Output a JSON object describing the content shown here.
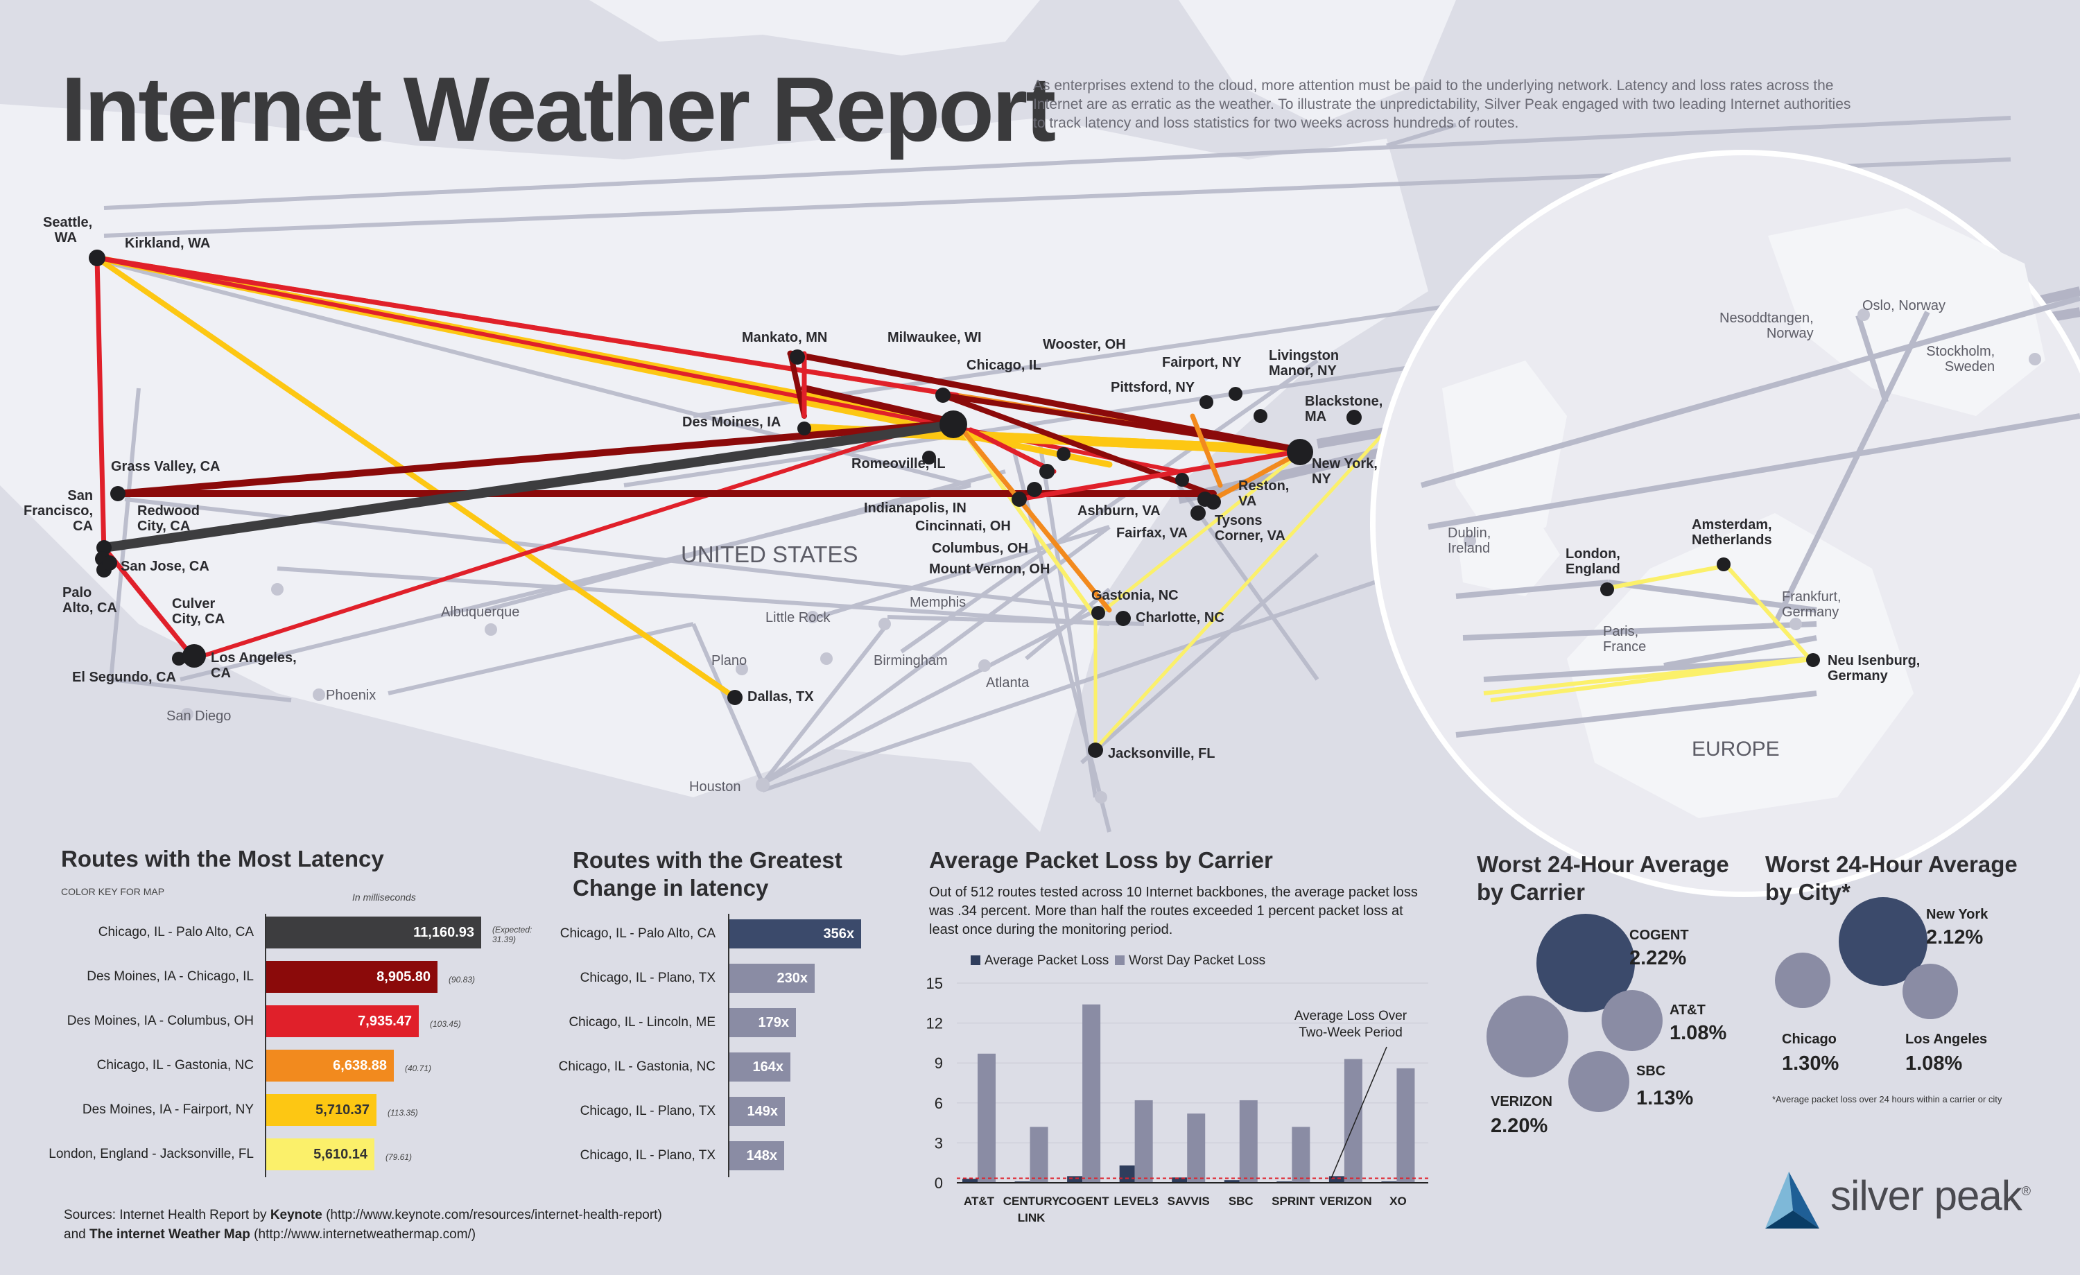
{
  "header": {
    "title": "Internet Weather Report",
    "intro": "As enterprises extend to the cloud, more attention must be paid to the underlying network. Latency and loss rates across the Internet are as erratic as the weather. To illustrate the unpredictability, Silver Peak engaged with two leading Internet authorities to track latency and loss statistics for two weeks across hundreds of routes."
  },
  "map": {
    "region_us": "UNITED STATES",
    "region_eu": "EUROPE",
    "cities_bold": [
      "Seattle, WA",
      "Kirkland, WA",
      "Mankato, MN",
      "Milwaukee, WI",
      "Wooster, OH",
      "Chicago, IL",
      "Fairport, NY",
      "Livingston Manor, NY",
      "Pittsford, NY",
      "Blackstone, MA",
      "Des Moines, IA",
      "New York, NY",
      "Romeoville, IL",
      "Reston, VA",
      "Grass Valley, CA",
      "San Francisco, CA",
      "Redwood City, CA",
      "Indianapolis, IN",
      "Ashburn, VA",
      "Tysons Corner, VA",
      "Cincinnati, OH",
      "Fairfax, VA",
      "Columbus, OH",
      "Mount Vernon, OH",
      "San Jose, CA",
      "Palo Alto, CA",
      "Culver City, CA",
      "Gastonia, NC",
      "Charlotte, NC",
      "Los Angeles, CA",
      "El Segundo, CA",
      "Dallas, TX",
      "Jacksonville, FL",
      "London, England",
      "Amsterdam, Netherlands",
      "Neu Isenburg, Germany"
    ],
    "cities_light": [
      "Albuquerque",
      "Little Rock",
      "Memphis",
      "Plano",
      "Birmingham",
      "Atlanta",
      "Phoenix",
      "San Diego",
      "Houston",
      "Dublin, Ireland",
      "Paris, France",
      "Frankfurt, Germany",
      "Nesoddtangen, Norway",
      "Oslo, Norway",
      "Stockholm, Sweden"
    ]
  },
  "latency": {
    "title": "Routes with the Most Latency",
    "color_key": "COLOR KEY FOR MAP",
    "unit": "In milliseconds",
    "expected_prefix": "(Expected:",
    "rows": [
      {
        "route": "Chicago, IL - Palo Alto, CA",
        "value": "11,160.93",
        "expected": "31.39)",
        "color": "#3d3d3f",
        "num": 11160.93
      },
      {
        "route": "Des Moines, IA - Chicago, IL",
        "value": "8,905.80",
        "expected": "(90.83)",
        "color": "#8b0a0a",
        "num": 8905.8
      },
      {
        "route": "Des Moines, IA - Columbus, OH",
        "value": "7,935.47",
        "expected": "(103.45)",
        "color": "#e0202a",
        "num": 7935.47
      },
      {
        "route": "Chicago, IL - Gastonia, NC",
        "value": "6,638.88",
        "expected": "(40.71)",
        "color": "#f28a1e",
        "num": 6638.88
      },
      {
        "route": "Des Moines, IA - Fairport, NY",
        "value": "5,710.37",
        "expected": "(113.35)",
        "color": "#fdc713",
        "num": 5710.37
      },
      {
        "route": "London, England - Jacksonville, FL",
        "value": "5,610.14",
        "expected": "(79.61)",
        "color": "#fbf06a",
        "num": 5610.14
      }
    ]
  },
  "change": {
    "title_line1": "Routes with the Greatest",
    "title_line2": "Change in latency",
    "rows": [
      {
        "route": "Chicago, IL - Palo Alto, CA",
        "value": "356x",
        "num": 356,
        "color": "#3b4a6b"
      },
      {
        "route": "Chicago, IL - Plano, TX",
        "value": "230x",
        "num": 230,
        "color": "#8a8ca4"
      },
      {
        "route": "Chicago, IL - Lincoln, ME",
        "value": "179x",
        "num": 179,
        "color": "#8a8ca4"
      },
      {
        "route": "Chicago, IL - Gastonia, NC",
        "value": "164x",
        "num": 164,
        "color": "#8a8ca4"
      },
      {
        "route": "Chicago, IL - Plano, TX",
        "value": "149x",
        "num": 149,
        "color": "#8a8ca4"
      },
      {
        "route": "Chicago, IL - Plano, TX",
        "value": "148x",
        "num": 148,
        "color": "#8a8ca4"
      }
    ]
  },
  "chart_data": {
    "type": "bar",
    "title": "Average Packet Loss by Carrier",
    "description": "Out of 512 routes tested across 10 Internet backbones, the average packet loss was .34 percent.  More than half the routes exceeded 1 percent packet loss at least once during the monitoring period.",
    "categories": [
      "AT&T",
      "CENTURY LINK",
      "COGENT",
      "LEVEL3",
      "SAVVIS",
      "SBC",
      "SPRINT",
      "VERIZON",
      "XO"
    ],
    "series": [
      {
        "name": "Average Packet Loss",
        "color": "#2f3d5c",
        "values": [
          0.3,
          0.1,
          0.5,
          1.3,
          0.4,
          0.2,
          0.1,
          0.5,
          0.1
        ]
      },
      {
        "name": "Worst Day Packet Loss",
        "color": "#8a8ca4",
        "values": [
          9.7,
          4.2,
          13.4,
          6.2,
          5.2,
          6.2,
          4.2,
          9.3,
          8.6
        ]
      }
    ],
    "yticks": [
      "0",
      "3",
      "6",
      "9",
      "12",
      "15"
    ],
    "ylim": [
      0,
      15
    ],
    "annotation": "Average Loss Over Two-Week Period",
    "annotation_value": 0.34
  },
  "worst_carrier": {
    "title_line1": "Worst 24-Hour Average",
    "title_line2": "by Carrier",
    "items": [
      {
        "name": "COGENT",
        "value": "2.22%",
        "color": "#3b4a6b"
      },
      {
        "name": "AT&T",
        "value": "1.08%",
        "color": "#8a8ca4"
      },
      {
        "name": "SBC",
        "value": "1.13%",
        "color": "#8a8ca4"
      },
      {
        "name": "VERIZON",
        "value": "2.20%",
        "color": "#8a8ca4"
      }
    ]
  },
  "worst_city": {
    "title_line1": "Worst 24-Hour Average",
    "title_line2": "by City*",
    "items": [
      {
        "name": "New York",
        "value": "2.12%",
        "color": "#3b4a6b"
      },
      {
        "name": "Chicago",
        "value": "1.30%",
        "color": "#8a8ca4"
      },
      {
        "name": "Los Angeles",
        "value": "1.08%",
        "color": "#8a8ca4"
      }
    ],
    "footnote": "*Average packet loss over 24 hours within a carrier or city"
  },
  "sources": {
    "line1_prefix": "Sources: Internet Health Report by ",
    "line1_bold": "Keynote",
    "line1_suffix": "  (http://www.keynote.com/resources/internet-health-report)",
    "line2_prefix": "and ",
    "line2_bold": "The internet Weather Map",
    "line2_suffix": " (http://www.internetweathermap.com/)"
  },
  "logo": {
    "text": "silver peak",
    "reg": "®"
  }
}
